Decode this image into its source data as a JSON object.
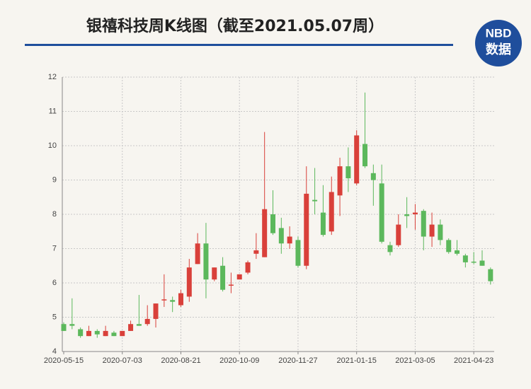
{
  "logo": {
    "top": "NBD",
    "bottom": "数据"
  },
  "chart_data": {
    "type": "candlestick",
    "title": "银禧科技周K线图（截至2021.05.07周）",
    "categories": [
      "2020-05-15",
      null,
      null,
      null,
      null,
      null,
      null,
      "2020-07-03",
      null,
      null,
      null,
      null,
      null,
      null,
      "2020-08-21",
      null,
      null,
      null,
      null,
      null,
      null,
      "2020-10-09",
      null,
      null,
      null,
      null,
      null,
      null,
      "2020-11-27",
      null,
      null,
      null,
      null,
      null,
      null,
      "2021-01-15",
      null,
      null,
      null,
      null,
      null,
      null,
      "2021-03-05",
      null,
      null,
      null,
      null,
      null,
      null,
      "2021-04-23",
      null,
      null
    ],
    "open": [
      4.8,
      4.8,
      4.65,
      4.45,
      4.6,
      4.45,
      4.55,
      4.45,
      4.6,
      4.8,
      4.8,
      4.95,
      5.5,
      5.5,
      5.35,
      5.6,
      6.55,
      7.15,
      6.1,
      6.5,
      5.92,
      6.1,
      6.3,
      6.85,
      6.75,
      8.0,
      7.6,
      7.15,
      7.25,
      6.5,
      8.42,
      8.05,
      7.5,
      8.55,
      9.4,
      8.9,
      10.05,
      9.2,
      8.9,
      7.1,
      7.1,
      8.0,
      8.0,
      8.1,
      7.35,
      7.7,
      7.25,
      6.95,
      6.8,
      6.62,
      6.65,
      6.4
    ],
    "high": [
      4.85,
      5.55,
      4.7,
      4.75,
      4.65,
      4.75,
      4.6,
      4.6,
      4.9,
      5.65,
      5.35,
      5.4,
      6.25,
      5.6,
      5.8,
      6.7,
      7.45,
      7.75,
      6.45,
      6.75,
      6.3,
      6.25,
      6.65,
      7.45,
      10.4,
      8.7,
      7.9,
      7.65,
      7.35,
      9.4,
      9.35,
      8.85,
      9.1,
      9.65,
      9.95,
      10.45,
      11.55,
      9.45,
      9.45,
      7.2,
      8.0,
      8.5,
      8.3,
      8.15,
      8.05,
      7.85,
      7.3,
      7.25,
      6.85,
      6.9,
      6.95,
      6.45
    ],
    "low": [
      4.6,
      4.65,
      4.4,
      4.45,
      4.4,
      4.45,
      4.45,
      4.45,
      4.6,
      4.75,
      4.75,
      4.7,
      5.3,
      5.15,
      5.3,
      5.45,
      6.55,
      5.55,
      6.05,
      5.75,
      5.7,
      6.1,
      6.25,
      6.7,
      6.75,
      7.4,
      6.85,
      7.0,
      6.45,
      6.4,
      8.0,
      7.35,
      7.4,
      7.95,
      8.65,
      8.85,
      9.35,
      8.25,
      7.15,
      6.8,
      7.05,
      7.6,
      7.55,
      6.95,
      7.05,
      7.1,
      6.85,
      6.8,
      6.45,
      6.55,
      6.5,
      5.95
    ],
    "close": [
      4.6,
      4.75,
      4.45,
      4.6,
      4.5,
      4.6,
      4.45,
      4.6,
      4.8,
      4.75,
      4.95,
      5.4,
      5.52,
      5.45,
      5.7,
      6.45,
      7.15,
      6.1,
      6.45,
      5.8,
      5.95,
      6.25,
      6.6,
      6.95,
      8.15,
      7.45,
      7.15,
      7.35,
      6.5,
      8.6,
      8.38,
      7.4,
      8.65,
      9.4,
      9.05,
      10.3,
      9.4,
      9.0,
      7.2,
      6.9,
      7.7,
      7.95,
      8.05,
      7.35,
      7.7,
      7.25,
      6.9,
      6.85,
      6.6,
      6.6,
      6.5,
      6.05
    ],
    "up_color": "#d9403a",
    "down_color": "#5cb85c",
    "ylim": [
      4,
      12
    ],
    "yticks": [
      4,
      5,
      6,
      7,
      8,
      9,
      10,
      11,
      12
    ],
    "grid": true
  }
}
